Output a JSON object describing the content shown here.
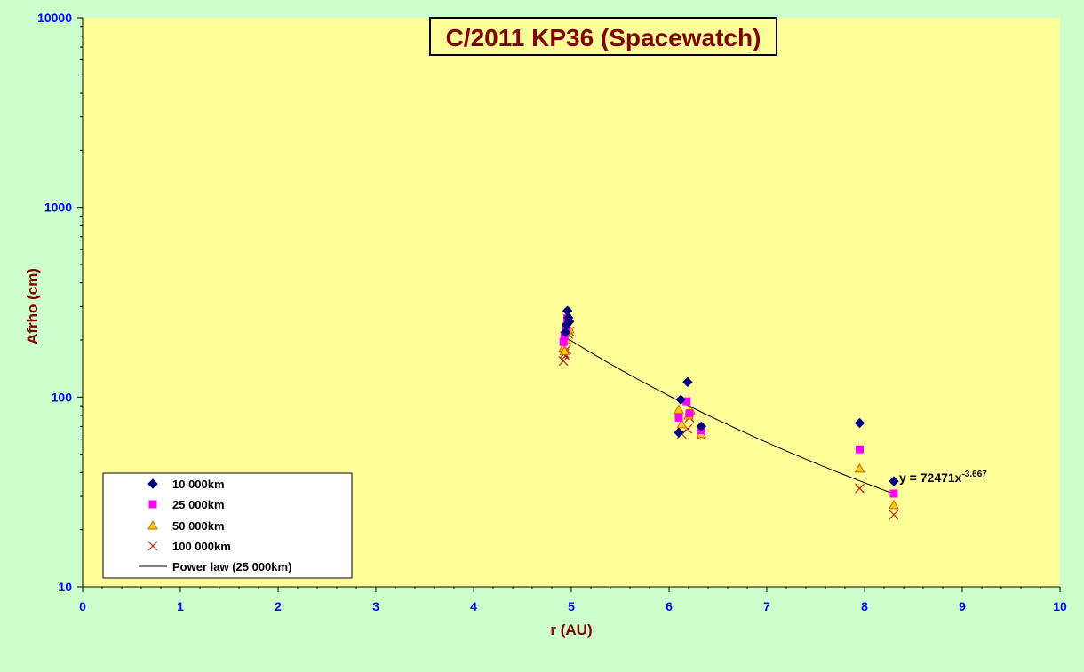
{
  "chart_data": {
    "type": "scatter",
    "title": "C/2011 KP36 (Spacewatch)",
    "xlabel": "r (AU)",
    "ylabel": "Afrho (cm)",
    "xlim": [
      0,
      10
    ],
    "ylim": [
      10,
      10000
    ],
    "yscale": "log",
    "grid": false,
    "legend_position": "bottom-left",
    "x_ticks": [
      "0",
      "1",
      "2",
      "3",
      "4",
      "5",
      "6",
      "7",
      "8",
      "9",
      "10"
    ],
    "y_ticks": [
      "10",
      "100",
      "1000",
      "10000"
    ],
    "colors": {
      "background": "#ccffcc",
      "plot_area": "#ffff99",
      "title_text": "#800000",
      "axis_title_text": "#800000",
      "tick_text": "#0000ff",
      "series_10000": "#000080",
      "series_25000": "#ff00ff",
      "series_50000_fill": "#ffcc00",
      "series_50000_edge": "#cc6600",
      "series_100000": "#b22222",
      "trendline": "#000000"
    },
    "series": [
      {
        "name": "10 000km",
        "marker": "diamond",
        "points": [
          [
            4.94,
            220
          ],
          [
            4.95,
            240
          ],
          [
            4.96,
            285
          ],
          [
            4.97,
            262
          ],
          [
            4.98,
            250
          ],
          [
            6.12,
            97
          ],
          [
            6.19,
            120
          ],
          [
            6.1,
            65
          ],
          [
            6.33,
            70
          ],
          [
            7.95,
            73
          ],
          [
            8.3,
            36
          ]
        ]
      },
      {
        "name": "25 000km",
        "marker": "square",
        "points": [
          [
            4.92,
            195
          ],
          [
            4.93,
            210
          ],
          [
            4.95,
            235
          ],
          [
            4.96,
            260
          ],
          [
            4.97,
            255
          ],
          [
            6.1,
            78
          ],
          [
            6.18,
            95
          ],
          [
            6.21,
            82
          ],
          [
            6.33,
            67
          ],
          [
            7.95,
            53
          ],
          [
            8.3,
            31
          ]
        ]
      },
      {
        "name": "50 000km",
        "marker": "triangle",
        "points": [
          [
            4.92,
            182
          ],
          [
            4.93,
            175
          ],
          [
            4.95,
            200
          ],
          [
            4.96,
            225
          ],
          [
            4.98,
            228
          ],
          [
            6.1,
            86
          ],
          [
            6.13,
            72
          ],
          [
            6.2,
            80
          ],
          [
            6.22,
            85
          ],
          [
            6.33,
            64
          ],
          [
            7.95,
            42
          ],
          [
            8.3,
            27
          ]
        ]
      },
      {
        "name": "100 000km",
        "marker": "x",
        "points": [
          [
            4.92,
            155
          ],
          [
            4.93,
            170
          ],
          [
            4.94,
            165
          ],
          [
            4.95,
            178
          ],
          [
            4.97,
            215
          ],
          [
            4.98,
            222
          ],
          [
            6.13,
            64
          ],
          [
            6.19,
            68
          ],
          [
            6.21,
            78
          ],
          [
            6.33,
            63
          ],
          [
            7.95,
            33
          ],
          [
            8.3,
            24
          ]
        ]
      }
    ],
    "trendline": {
      "name": "Power law (25 000km)",
      "coefficient": 72471,
      "exponent": -3.667,
      "x_range": [
        4.95,
        8.3
      ],
      "equation_base": "y = 72471x",
      "equation_exponent": "-3.667"
    }
  }
}
